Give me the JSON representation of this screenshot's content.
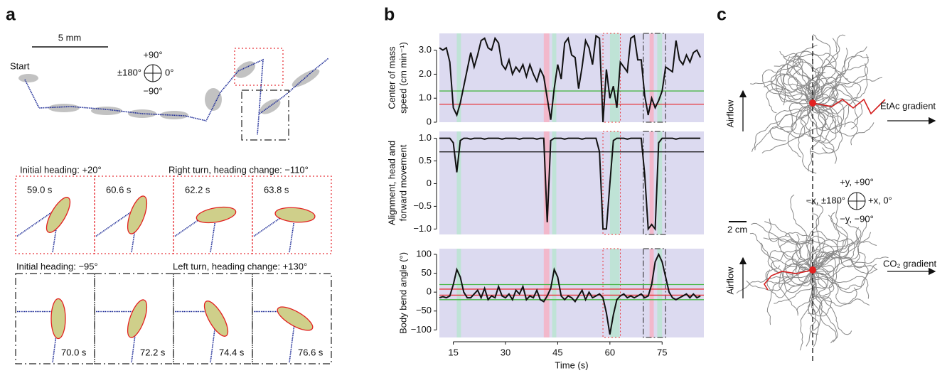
{
  "panels": {
    "a": {
      "label": "a",
      "scale_bar": "5 mm",
      "start": "Start",
      "compass": {
        "up": "+90°",
        "left": "±180°",
        "right": "0°",
        "down": "−90°"
      },
      "rows": [
        {
          "heading": "Initial heading: +20°",
          "turn": "Right turn, heading change: −110°",
          "times": [
            "59.0 s",
            "60.6 s",
            "62.2 s",
            "63.8 s"
          ]
        },
        {
          "heading": "Initial heading: −95°",
          "turn": "Left turn, heading change: +130°",
          "times": [
            "70.0 s",
            "72.2 s",
            "74.4 s",
            "76.6 s"
          ]
        }
      ]
    },
    "b": {
      "label": "b"
    },
    "c": {
      "label": "c",
      "airflow_top": "Airflow",
      "gradient_top": "EtAc gradient",
      "scale_bar": "2 cm",
      "compass": {
        "up": "+y, +90°",
        "left": "−x, ±180°",
        "right": "+x, 0°",
        "down": "−y, −90°"
      },
      "airflow_bottom": "Airflow",
      "gradient_bottom": "CO₂ gradient"
    }
  },
  "chart_data": [
    {
      "type": "line",
      "ylabel": [
        "Center of mass",
        "speed (cm min⁻¹)"
      ],
      "color": "#111111",
      "x": [
        11,
        12,
        13,
        14,
        15,
        16,
        17,
        18,
        19,
        20,
        21,
        22,
        23,
        24,
        25,
        26,
        27,
        28,
        29,
        30,
        31,
        32,
        33,
        34,
        35,
        36,
        37,
        38,
        39,
        40,
        41,
        42,
        43,
        44,
        45,
        46,
        47,
        48,
        49,
        50,
        51,
        52,
        53,
        54,
        55,
        56,
        57,
        58,
        59,
        60,
        61,
        62,
        63,
        64,
        65,
        66,
        67,
        68,
        69,
        70,
        71,
        72,
        73,
        74,
        75,
        76,
        77,
        78,
        79,
        80,
        81,
        82,
        83,
        84,
        85,
        86
      ],
      "values": [
        3.1,
        3.0,
        3.1,
        2.5,
        0.6,
        0.3,
        0.8,
        1.5,
        2.2,
        2.9,
        2.3,
        2.8,
        3.4,
        3.5,
        3.1,
        3.0,
        3.5,
        3.3,
        2.4,
        2.2,
        2.6,
        2.0,
        2.3,
        2.1,
        2.4,
        1.9,
        2.4,
        2.0,
        1.7,
        2.2,
        1.9,
        1.0,
        0.1,
        1.4,
        2.4,
        1.8,
        3.3,
        3.5,
        2.8,
        2.7,
        1.4,
        2.3,
        3.4,
        3.1,
        2.4,
        3.6,
        3.5,
        0.0,
        2.2,
        1.0,
        1.5,
        0.6,
        2.5,
        2.3,
        2.1,
        3.5,
        3.6,
        2.6,
        2.6,
        1.1,
        0.3,
        1.0,
        0.6,
        0.9,
        1.3,
        2.3,
        2.2,
        2.1,
        3.4,
        2.6,
        2.4,
        2.8,
        2.5,
        2.9,
        3.0,
        2.7
      ],
      "xlim": [
        11,
        87
      ],
      "ylim": [
        0,
        3.7
      ],
      "yticks": [
        0,
        {
          "value": 1,
          "label": "1.0"
        },
        {
          "value": 2,
          "label": "2.0"
        },
        {
          "value": 3,
          "label": "3.0"
        }
      ],
      "hlines": [
        {
          "value": 1.3,
          "color": "#4cb848"
        },
        {
          "value": 0.75,
          "color": "#e8343a"
        }
      ],
      "shaded": [
        {
          "start": 16,
          "end": 17.2,
          "color": "#bfe3d6"
        },
        {
          "start": 41,
          "end": 42.6,
          "color": "#f2b8cb"
        },
        {
          "start": 43.4,
          "end": 44.6,
          "color": "#bfe3d6"
        },
        {
          "start": 60,
          "end": 62.8,
          "color": "#bfe3d6"
        },
        {
          "start": 71.4,
          "end": 72.6,
          "color": "#f2b8cb"
        },
        {
          "start": 73.6,
          "end": 75,
          "color": "#bfe3d6"
        }
      ]
    },
    {
      "type": "line",
      "ylabel": [
        "Alignment, head and",
        "forward movement"
      ],
      "color": "#111111",
      "x": [
        11,
        12,
        13,
        14,
        15,
        16,
        17,
        18,
        19,
        20,
        21,
        22,
        23,
        24,
        25,
        26,
        27,
        28,
        29,
        30,
        31,
        32,
        33,
        34,
        35,
        36,
        37,
        38,
        39,
        40,
        41,
        42,
        43,
        44,
        45,
        46,
        47,
        48,
        49,
        50,
        51,
        52,
        53,
        54,
        55,
        56,
        57,
        58,
        59,
        60,
        61,
        62,
        63,
        64,
        65,
        66,
        67,
        68,
        69,
        70,
        71,
        72,
        73,
        74,
        75,
        76,
        77,
        78,
        79,
        80,
        81,
        82,
        83,
        84,
        85,
        86
      ],
      "values": [
        1,
        1,
        1,
        1,
        0.9,
        0.25,
        0.95,
        1,
        1,
        0.98,
        1,
        1,
        1,
        0.98,
        1,
        1,
        1,
        1,
        0.98,
        1,
        1,
        1,
        1,
        0.98,
        1,
        1,
        1,
        1,
        0.98,
        1,
        1,
        -0.85,
        0.95,
        1,
        1,
        1,
        0.98,
        1,
        1,
        1,
        1,
        0.98,
        1,
        1,
        1,
        1,
        0.7,
        -1,
        -1,
        0,
        0.95,
        1,
        1,
        1,
        0.98,
        1,
        1,
        1,
        1,
        0.2,
        -1,
        -0.9,
        -1,
        0.9,
        1,
        1,
        1,
        1,
        0.98,
        1,
        1,
        1,
        1,
        1,
        1,
        1
      ],
      "xlim": [
        11,
        87
      ],
      "ylim": [
        -1.12,
        1.15
      ],
      "yticks": [
        {
          "value": -1,
          "label": "−1.0"
        },
        {
          "value": -0.5,
          "label": "−0.5"
        },
        0,
        {
          "value": 0.5,
          "label": "0.5"
        },
        {
          "value": 1,
          "label": "1.0"
        }
      ],
      "hlines": [
        {
          "value": 0.7,
          "color": "#111111"
        }
      ],
      "shaded": [
        {
          "start": 16,
          "end": 17.2,
          "color": "#bfe3d6"
        },
        {
          "start": 41,
          "end": 42.6,
          "color": "#f2b8cb"
        },
        {
          "start": 43.4,
          "end": 44.6,
          "color": "#bfe3d6"
        },
        {
          "start": 60,
          "end": 62.8,
          "color": "#bfe3d6"
        },
        {
          "start": 71.4,
          "end": 72.6,
          "color": "#f2b8cb"
        },
        {
          "start": 73.6,
          "end": 75,
          "color": "#bfe3d6"
        }
      ]
    },
    {
      "type": "line",
      "ylabel": [
        "Body bend angle (°)"
      ],
      "xlabel": "Time (s)",
      "color": "#111111",
      "x": [
        11,
        12,
        13,
        14,
        15,
        16,
        17,
        18,
        19,
        20,
        21,
        22,
        23,
        24,
        25,
        26,
        27,
        28,
        29,
        30,
        31,
        32,
        33,
        34,
        35,
        36,
        37,
        38,
        39,
        40,
        41,
        42,
        43,
        44,
        45,
        46,
        47,
        48,
        49,
        50,
        51,
        52,
        53,
        54,
        55,
        56,
        57,
        58,
        59,
        60,
        61,
        62,
        63,
        64,
        65,
        66,
        67,
        68,
        69,
        70,
        71,
        72,
        73,
        74,
        75,
        76,
        77,
        78,
        79,
        80,
        81,
        82,
        83,
        84,
        85,
        86
      ],
      "values": [
        -15,
        -12,
        -15,
        -10,
        20,
        60,
        40,
        0,
        -15,
        -15,
        -5,
        5,
        -15,
        10,
        -20,
        -10,
        -15,
        15,
        -10,
        -15,
        -5,
        -20,
        5,
        -5,
        15,
        -20,
        -10,
        -15,
        5,
        -20,
        -25,
        -10,
        10,
        60,
        40,
        -10,
        -20,
        -10,
        -15,
        -25,
        -10,
        5,
        -20,
        0,
        -15,
        -10,
        -5,
        -15,
        -55,
        -112,
        -60,
        -20,
        -10,
        -5,
        -15,
        -10,
        -15,
        -10,
        -5,
        -15,
        -10,
        20,
        80,
        100,
        80,
        40,
        0,
        -15,
        -20,
        -15,
        -10,
        -5,
        -15,
        -5,
        -15,
        -10
      ],
      "xlim": [
        11,
        87
      ],
      "ylim": [
        -120,
        115
      ],
      "xticks": [
        15,
        30,
        45,
        60,
        75
      ],
      "yticks": [
        {
          "value": -100,
          "label": "−100"
        },
        {
          "value": -50,
          "label": "−50"
        },
        0,
        50,
        100
      ],
      "hlines": [
        {
          "value": 20,
          "color": "#4cb848"
        },
        {
          "value": -20,
          "color": "#4cb848"
        },
        {
          "value": 8,
          "color": "#e8343a"
        },
        {
          "value": -8,
          "color": "#e8343a"
        }
      ],
      "shaded": [
        {
          "start": 16,
          "end": 17.2,
          "color": "#bfe3d6"
        },
        {
          "start": 41,
          "end": 42.6,
          "color": "#f2b8cb"
        },
        {
          "start": 43.4,
          "end": 44.6,
          "color": "#bfe3d6"
        },
        {
          "start": 60,
          "end": 62.8,
          "color": "#bfe3d6"
        },
        {
          "start": 71.4,
          "end": 72.6,
          "color": "#f2b8cb"
        },
        {
          "start": 73.6,
          "end": 75,
          "color": "#bfe3d6"
        }
      ]
    }
  ]
}
